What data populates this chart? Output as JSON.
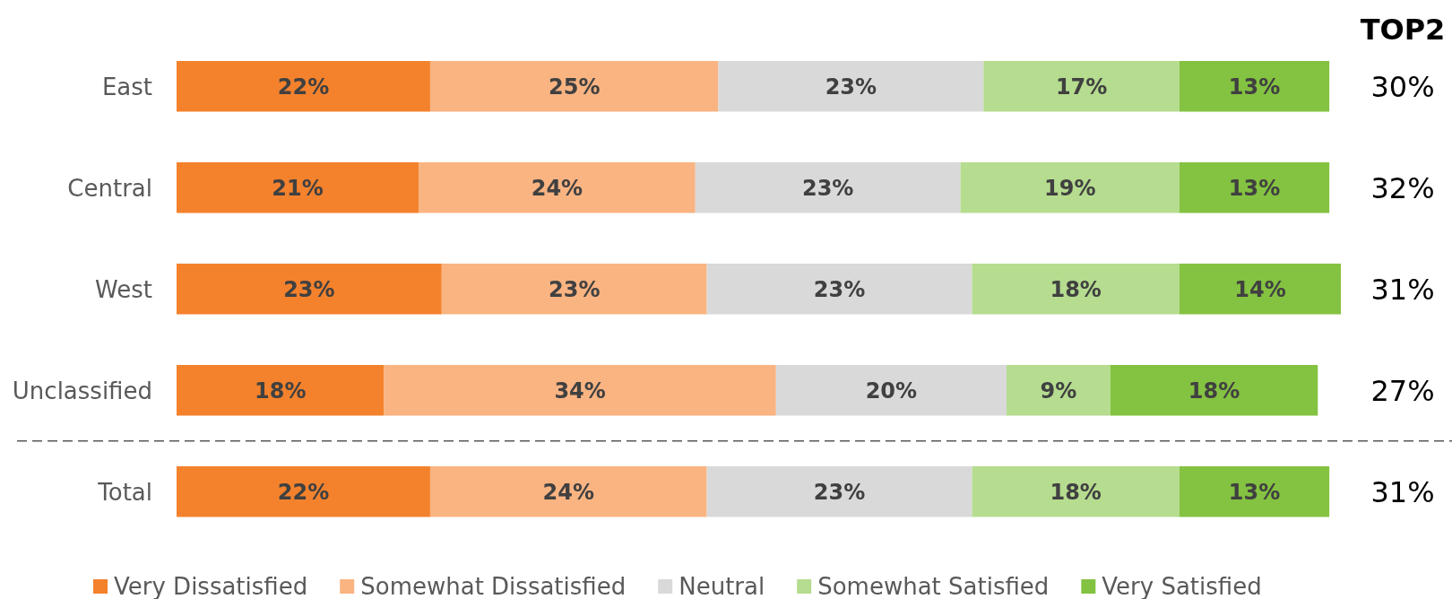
{
  "chart_data": {
    "type": "bar",
    "orientation": "horizontal",
    "stacked": true,
    "categories": [
      "East",
      "Central",
      "West",
      "Unclassified",
      "Total"
    ],
    "series": [
      {
        "name": "Very Dissatisfied",
        "color": "#f4822c",
        "values": [
          22,
          21,
          23,
          18,
          22
        ],
        "value_labels": [
          "22%",
          "21%",
          "23%",
          "18%",
          "22%"
        ]
      },
      {
        "name": "Somewhat Dissatisfied",
        "color": "#f9b482",
        "values": [
          25,
          24,
          23,
          34,
          24
        ],
        "value_labels": [
          "25%",
          "24%",
          "23%",
          "34%",
          "24%"
        ]
      },
      {
        "name": "Neutral",
        "color": "#d9d9d9",
        "values": [
          23,
          23,
          23,
          20,
          23
        ],
        "value_labels": [
          "23%",
          "23%",
          "23%",
          "20%",
          "23%"
        ]
      },
      {
        "name": "Somewhat Satisfied",
        "color": "#b5dc8f",
        "values": [
          17,
          19,
          18,
          9,
          18
        ],
        "value_labels": [
          "17%",
          "19%",
          "18%",
          "9%",
          "18%"
        ]
      },
      {
        "name": "Very Satisfied",
        "color": "#84c241",
        "values": [
          13,
          13,
          14,
          18,
          13
        ],
        "value_labels": [
          "13%",
          "13%",
          "14%",
          "18%",
          "13%"
        ]
      }
    ],
    "legend": "bottom",
    "annotations": [
      "TOP2",
      "30%",
      "32%",
      "31%",
      "27%",
      "31%"
    ]
  }
}
